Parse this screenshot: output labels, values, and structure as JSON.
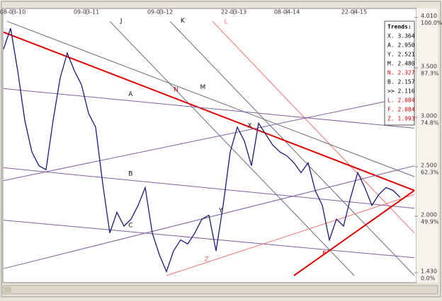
{
  "chart_data": {
    "type": "line",
    "series": [
      {
        "color": "#1a1a7a",
        "values": [
          3.69,
          3.9,
          3.47,
          2.97,
          2.65,
          2.51,
          2.47,
          2.97,
          3.4,
          3.65,
          3.47,
          3.33,
          3.04,
          2.9,
          2.33,
          1.83,
          2.04,
          1.9,
          1.97,
          2.11,
          2.29,
          1.83,
          1.61,
          1.44,
          1.65,
          1.76,
          1.72,
          1.83,
          1.97,
          2.01,
          1.65,
          2.11,
          2.65,
          2.9,
          2.76,
          2.51,
          2.94,
          2.83,
          2.72,
          2.65,
          2.61,
          2.54,
          2.44,
          2.54,
          2.26,
          2.11,
          1.76,
          1.97,
          1.9,
          2.19,
          2.44,
          2.29,
          2.11,
          2.22,
          2.29,
          2.26,
          2.19
        ]
      }
    ],
    "xlim": [
      0,
      58
    ],
    "xticks": [
      {
        "value": 1.3,
        "label": "08-03-10"
      },
      {
        "value": 11.7,
        "label": "09-03-11"
      },
      {
        "value": 22.1,
        "label": "09-03-12"
      },
      {
        "value": 32.5,
        "label": "22-03-13"
      },
      {
        "value": 40,
        "label": "08-04-14"
      },
      {
        "value": 49.5,
        "label": "22-04-15"
      }
    ],
    "ylim": [
      1.43,
      4.01
    ],
    "yticks": [
      {
        "value": 4.01,
        "label": "4.010"
      },
      {
        "value": 3.5,
        "label": "3.500"
      },
      {
        "value": 3.0,
        "label": "3.000"
      },
      {
        "value": 2.5,
        "label": "2.500"
      },
      {
        "value": 2.0,
        "label": "2.000"
      },
      {
        "value": 1.43,
        "label": "1.430"
      }
    ],
    "percent_ticks": [
      {
        "value": 4.01,
        "label": "100.0%"
      },
      {
        "value": 3.5,
        "label": "87.3%"
      },
      {
        "value": 3.0,
        "label": "74.8%"
      },
      {
        "value": 2.5,
        "label": "62.3%"
      },
      {
        "value": 2.0,
        "label": "49.9%"
      },
      {
        "value": 1.43,
        "label": "0.0%"
      }
    ],
    "trendlines": [
      {
        "label": "J",
        "color": "#6a6a7a",
        "start": [
          15,
          3.97
        ],
        "end": [
          49.5,
          1.4
        ]
      },
      {
        "label": "K",
        "color": "#6a6a7a",
        "start": [
          23.5,
          3.97
        ],
        "end": [
          58,
          1.4
        ]
      },
      {
        "label": "L",
        "color": "#f07070",
        "start": [
          29.5,
          3.97
        ],
        "end": [
          58,
          1.83
        ]
      },
      {
        "label": "M",
        "color": "#6a6a7a",
        "start": [
          0.5,
          3.97
        ],
        "end": [
          58,
          2.4
        ]
      },
      {
        "label": "N",
        "color": "#e00000",
        "start": [
          0,
          3.86
        ],
        "end": [
          58,
          2.26
        ]
      },
      {
        "label": "A",
        "color": "#8060a0",
        "start": [
          0,
          3.29
        ],
        "end": [
          58,
          2.89
        ]
      },
      {
        "label": "X",
        "color": "#8060a0",
        "start": [
          0,
          2.36
        ],
        "end": [
          58,
          3.22
        ]
      },
      {
        "label": "B",
        "color": "#8060a0",
        "start": [
          0,
          2.49
        ],
        "end": [
          58,
          2.08
        ]
      },
      {
        "label": "Y",
        "color": "#8060a0",
        "start": [
          0,
          1.47
        ],
        "end": [
          58,
          2.51
        ]
      },
      {
        "label": "C",
        "color": "#8060a0",
        "start": [
          0,
          1.96
        ],
        "end": [
          58,
          1.58
        ]
      },
      {
        "label": "Z",
        "color": "#f07070",
        "start": [
          23,
          1.4
        ],
        "end": [
          58,
          2.22
        ]
      },
      {
        "label": "F",
        "color": "#e00000",
        "start": [
          41,
          1.4
        ],
        "end": [
          58,
          2.26
        ]
      }
    ],
    "trends_box": {
      "title": "Trends:",
      "items": [
        {
          "label": "X. 3.364",
          "color": "#000000"
        },
        {
          "label": "A. 2.950",
          "color": "#000000"
        },
        {
          "label": "Y. 2.521",
          "color": "#000000"
        },
        {
          "label": "M. 2.480",
          "color": "#000000"
        },
        {
          "label": "N. 2.327",
          "color": "#e00000"
        },
        {
          "label": "B. 2.157",
          "color": "#000000"
        },
        {
          "label": ">> 2.116",
          "color": "#000000"
        },
        {
          "label": "L. 2.084",
          "color": "#e00000"
        },
        {
          "label": "F. 2.084",
          "color": "#e00000"
        },
        {
          "label": "Z. 1.993",
          "color": "#e00000"
        }
      ]
    }
  }
}
